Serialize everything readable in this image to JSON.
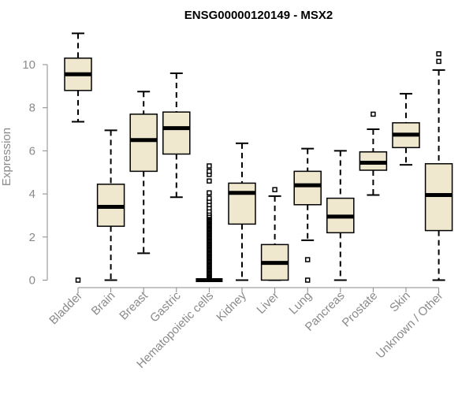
{
  "chart_data": {
    "type": "box",
    "title": "ENSG00000120149 - MSX2",
    "xlabel": "",
    "ylabel": "Expression",
    "ylim": [
      0,
      11.6
    ],
    "yticks": [
      0,
      2,
      4,
      6,
      8,
      10
    ],
    "grid": false,
    "legend": "none",
    "colors": {
      "box_fill": "#efe7ce",
      "stroke": "#000000",
      "axis": "#8a8a8a"
    },
    "categories": [
      "Bladder",
      "Brain",
      "Breast",
      "Gastric",
      "Hematopoietic cells",
      "Kidney",
      "Liver",
      "Lung",
      "Pancreas",
      "Prostate",
      "Skin",
      "Unknown / Other"
    ],
    "boxes": [
      {
        "whisker_low": 7.35,
        "q1": 8.8,
        "median": 9.55,
        "q3": 10.3,
        "whisker_high": 11.45,
        "outliers": [
          0.0
        ]
      },
      {
        "whisker_low": 0.0,
        "q1": 2.5,
        "median": 3.4,
        "q3": 4.45,
        "whisker_high": 6.95,
        "outliers": []
      },
      {
        "whisker_low": 1.25,
        "q1": 5.05,
        "median": 6.5,
        "q3": 7.7,
        "whisker_high": 8.75,
        "outliers": []
      },
      {
        "whisker_low": 3.85,
        "q1": 5.85,
        "median": 7.05,
        "q3": 7.8,
        "whisker_high": 9.6,
        "outliers": []
      },
      {
        "whisker_low": 0.0,
        "q1": 0.0,
        "median": 0.0,
        "q3": 0.0,
        "whisker_high": 0.0,
        "outliers": [
          0.03,
          0.06,
          0.09,
          0.12,
          0.16,
          0.2,
          0.25,
          0.3,
          0.35,
          0.4,
          0.45,
          0.5,
          0.55,
          0.6,
          0.65,
          0.7,
          0.75,
          0.8,
          0.85,
          0.9,
          0.95,
          1.0,
          1.05,
          1.1,
          1.15,
          1.2,
          1.25,
          1.3,
          1.35,
          1.4,
          1.45,
          1.5,
          1.55,
          1.6,
          1.65,
          1.7,
          1.75,
          1.8,
          1.85,
          1.9,
          1.95,
          2.0,
          2.05,
          2.1,
          2.15,
          2.2,
          2.25,
          2.3,
          2.35,
          2.4,
          2.45,
          2.5,
          2.55,
          2.6,
          2.65,
          2.7,
          2.75,
          2.8,
          2.85,
          2.9,
          2.95,
          3.0,
          3.1,
          3.2,
          3.35,
          3.5,
          3.65,
          3.8,
          4.05,
          4.6,
          4.9,
          5.05,
          5.3
        ]
      },
      {
        "whisker_low": 0.0,
        "q1": 2.6,
        "median": 4.05,
        "q3": 4.5,
        "whisker_high": 6.35,
        "outliers": []
      },
      {
        "whisker_low": 0.0,
        "q1": 0.0,
        "median": 0.8,
        "q3": 1.65,
        "whisker_high": 3.9,
        "outliers": [
          4.2
        ]
      },
      {
        "whisker_low": 1.85,
        "q1": 3.5,
        "median": 4.4,
        "q3": 5.05,
        "whisker_high": 6.1,
        "outliers": [
          0.95,
          0.0
        ]
      },
      {
        "whisker_low": 0.0,
        "q1": 2.2,
        "median": 2.95,
        "q3": 3.8,
        "whisker_high": 6.0,
        "outliers": []
      },
      {
        "whisker_low": 3.95,
        "q1": 5.1,
        "median": 5.45,
        "q3": 5.95,
        "whisker_high": 7.0,
        "outliers": [
          7.7
        ]
      },
      {
        "whisker_low": 5.35,
        "q1": 6.15,
        "median": 6.75,
        "q3": 7.3,
        "whisker_high": 8.65,
        "outliers": []
      },
      {
        "whisker_low": 0.0,
        "q1": 2.3,
        "median": 3.95,
        "q3": 5.4,
        "whisker_high": 9.75,
        "outliers": [
          10.15,
          10.5
        ]
      }
    ]
  }
}
